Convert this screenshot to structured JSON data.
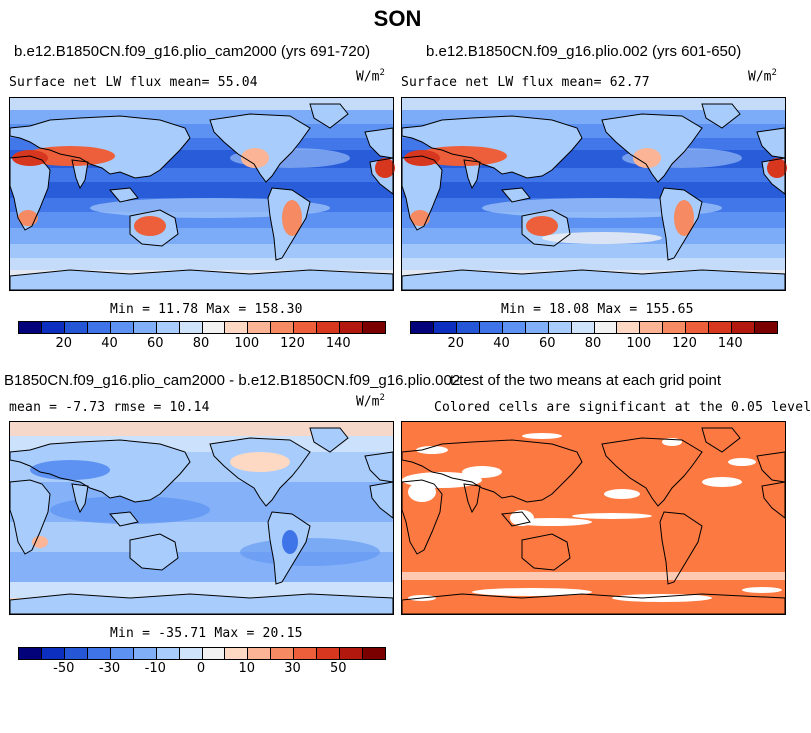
{
  "figure": {
    "title": "SON"
  },
  "panels": [
    {
      "case_title": "b.e12.B1850CN.f09_g16.plio_cam2000 (yrs 691-720)",
      "stat_left": "Surface net LW flux mean=  55.04",
      "units": "W/m",
      "units_exp": "2",
      "minmax": "Min =  11.78 Max = 158.30"
    },
    {
      "case_title": "b.e12.B1850CN.f09_g16.plio.002 (yrs 601-650)",
      "stat_left": "Surface net LW flux mean=  62.77",
      "units": "W/m",
      "units_exp": "2",
      "minmax": "Min =  18.08 Max = 155.65"
    },
    {
      "case_title": "B1850CN.f09_g16.plio_cam2000 - b.e12.B1850CN.f09_g16.plio.002",
      "stat_left": "mean =  -7.73     rmse =  10.14",
      "units": "W/m",
      "units_exp": "2",
      "minmax": "Min = -35.71 Max =  20.15"
    },
    {
      "case_title": "t-test of the two means at each grid point",
      "stat_left": "Colored cells are significant at the 0.05 level"
    }
  ],
  "colorbars": {
    "abs": {
      "labels": [
        "20",
        "40",
        "60",
        "80",
        "100",
        "120",
        "140"
      ],
      "colors": [
        "#04027a",
        "#0d2fbf",
        "#2456d6",
        "#3e74e8",
        "#5d92f2",
        "#80aef7",
        "#a8ccfb",
        "#cfe3fb",
        "#f2f2f2",
        "#fdd9c4",
        "#fbb596",
        "#f58a63",
        "#ec5f3a",
        "#d8371f",
        "#b3180f",
        "#7a0000"
      ]
    },
    "diff": {
      "labels": [
        "-50",
        "-30",
        "-10",
        "0",
        "10",
        "30",
        "50"
      ],
      "colors": [
        "#04027a",
        "#0d2fbf",
        "#2456d6",
        "#3e74e8",
        "#5d92f2",
        "#80aef7",
        "#a8ccfb",
        "#cfe3fb",
        "#f2f2f2",
        "#fdd9c4",
        "#fbb596",
        "#f58a63",
        "#ec5f3a",
        "#d8371f",
        "#b3180f",
        "#7a0000"
      ]
    }
  },
  "colors": {
    "ocean_abs": "#5d92f2",
    "ocean_diff": "#a8ccfb",
    "significant": "#fc7941",
    "not_significant": "#ffffff",
    "coast": "#000000"
  },
  "chart_data": [
    {
      "type": "heatmap",
      "title": "b.e12.B1850CN.f09_g16.plio_cam2000 (yrs 691-720)",
      "variable": "Surface net LW flux",
      "units": "W/m^2",
      "mean": 55.04,
      "min": 11.78,
      "max": 158.3,
      "colorbar_ticks": [
        20,
        40,
        60,
        80,
        100,
        120,
        140
      ]
    },
    {
      "type": "heatmap",
      "title": "b.e12.B1850CN.f09_g16.plio.002 (yrs 601-650)",
      "variable": "Surface net LW flux",
      "units": "W/m^2",
      "mean": 62.77,
      "min": 18.08,
      "max": 155.65,
      "colorbar_ticks": [
        20,
        40,
        60,
        80,
        100,
        120,
        140
      ]
    },
    {
      "type": "heatmap",
      "title": "B1850CN.f09_g16.plio_cam2000 - b.e12.B1850CN.f09_g16.plio.002",
      "units": "W/m^2",
      "mean": -7.73,
      "rmse": 10.14,
      "min": -35.71,
      "max": 20.15,
      "colorbar_ticks": [
        -50,
        -30,
        -10,
        0,
        10,
        30,
        50
      ]
    },
    {
      "type": "heatmap",
      "title": "t-test of the two means at each grid point",
      "subtitle": "Colored cells are significant at the 0.05 level"
    }
  ]
}
